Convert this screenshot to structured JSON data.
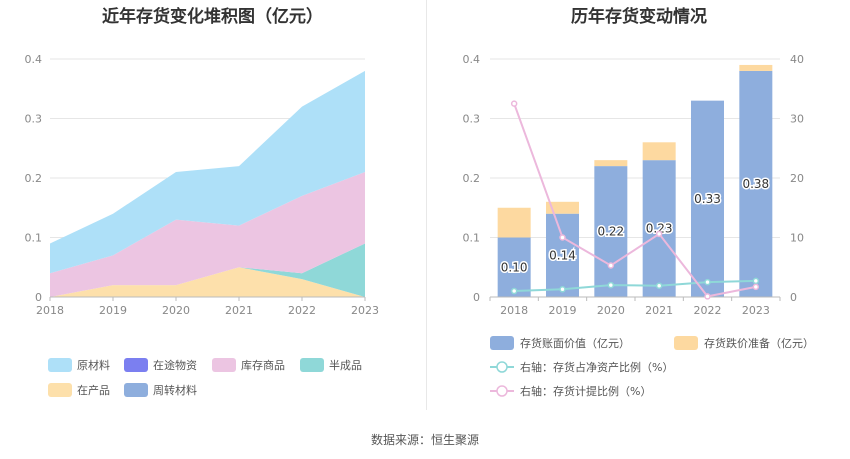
{
  "source_text": "数据来源：恒生聚源",
  "chart_data": [
    {
      "type": "area",
      "stacked": true,
      "title": "近年存货变化堆积图（亿元）",
      "x": [
        "2018",
        "2019",
        "2020",
        "2021",
        "2022",
        "2023"
      ],
      "ylim": [
        0,
        0.4
      ],
      "yticks": [
        "0",
        "0.1",
        "0.2",
        "0.3",
        "0.4"
      ],
      "grid": true,
      "series": [
        {
          "name": "原材料",
          "color": "#aee0f8",
          "values": [
            0.05,
            0.07,
            0.08,
            0.1,
            0.15,
            0.17
          ]
        },
        {
          "name": "在途物资",
          "color": "#7b7ff0",
          "values": [
            0,
            0,
            0,
            0,
            0,
            0
          ]
        },
        {
          "name": "库存商品",
          "color": "#ecc5e2",
          "values": [
            0.04,
            0.05,
            0.11,
            0.07,
            0.13,
            0.12
          ]
        },
        {
          "name": "半成品",
          "color": "#8fd8d8",
          "values": [
            0,
            0,
            0,
            0,
            0.01,
            0.09
          ]
        },
        {
          "name": "在产品",
          "color": "#fde0ab",
          "values": [
            0,
            0.02,
            0.02,
            0.05,
            0.03,
            0
          ]
        },
        {
          "name": "周转材料",
          "color": "#8eaedd",
          "values": [
            0,
            0,
            0,
            0,
            0,
            0
          ]
        }
      ],
      "legend_position": "bottom"
    },
    {
      "type": "bar",
      "title": "历年存货变动情况",
      "categories": [
        "2018",
        "2019",
        "2020",
        "2021",
        "2022",
        "2023"
      ],
      "ylim": [
        0,
        0.4
      ],
      "yticks": [
        "0",
        "0.1",
        "0.2",
        "0.3",
        "0.4"
      ],
      "y2lim": [
        0,
        40
      ],
      "y2ticks": [
        "0",
        "10",
        "20",
        "30",
        "40"
      ],
      "series": [
        {
          "name": "存货账面价值（亿元）",
          "type": "bar",
          "color": "#8eaedd",
          "values": [
            0.1,
            0.14,
            0.22,
            0.23,
            0.33,
            0.38
          ],
          "labels": [
            "0.10",
            "0.14",
            "0.22",
            "0.23",
            "0.33",
            "0.38"
          ]
        },
        {
          "name": "存货跌价准备（亿元）",
          "type": "bar",
          "stacked": true,
          "color": "#fdd9a0",
          "values": [
            0.05,
            0.02,
            0.01,
            0.03,
            0.0,
            0.01
          ]
        },
        {
          "name": "右轴：存货占净资产比例（%）",
          "type": "line",
          "axis": "right",
          "color": "#8fd8d8",
          "values": [
            1.0,
            1.3,
            2.0,
            1.9,
            2.5,
            2.7
          ]
        },
        {
          "name": "右轴：存货计提比例（%）",
          "type": "line",
          "axis": "right",
          "color": "#ecb8dc",
          "values": [
            32.5,
            10.0,
            5.3,
            10.6,
            0.1,
            1.7
          ]
        }
      ],
      "legend_position": "bottom"
    }
  ]
}
